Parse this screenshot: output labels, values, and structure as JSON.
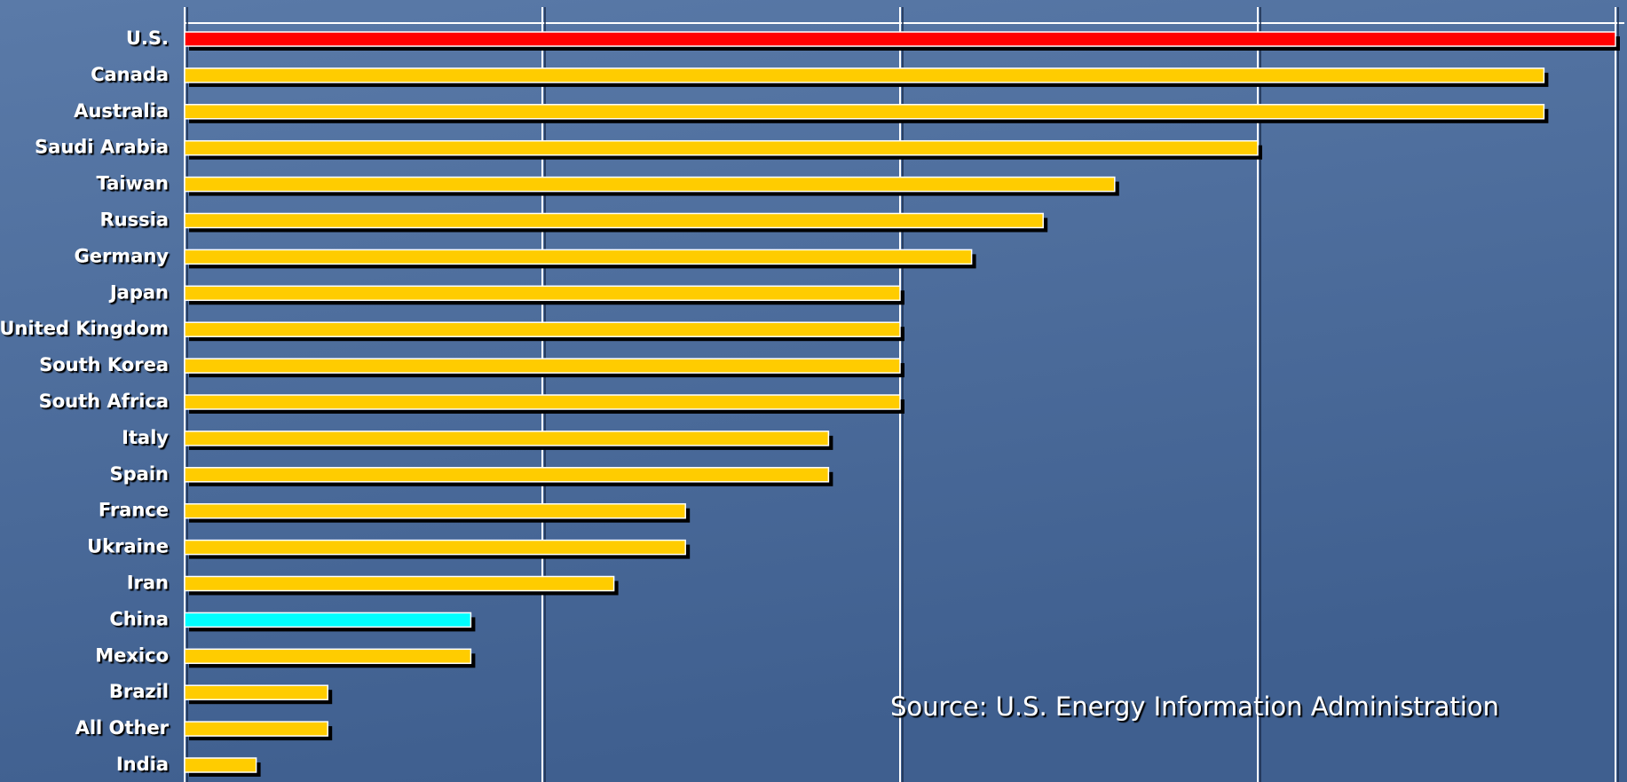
{
  "chart_data": {
    "type": "bar",
    "orientation": "horizontal",
    "categories": [
      "U.S.",
      "Canada",
      "Australia",
      "Saudi Arabia",
      "Taiwan",
      "Russia",
      "Germany",
      "Japan",
      "United Kingdom",
      "South Korea",
      "South Africa",
      "Italy",
      "Spain",
      "France",
      "Ukraine",
      "Iran",
      "China",
      "Mexico",
      "Brazil",
      "All Other",
      "India"
    ],
    "values": [
      20,
      19,
      19,
      15,
      13,
      12,
      11,
      10,
      10,
      10,
      10,
      9,
      9,
      7,
      7,
      6,
      4,
      4,
      2,
      2,
      1
    ],
    "colors": [
      "#ff0000",
      "#ffcc00",
      "#ffcc00",
      "#ffcc00",
      "#ffcc00",
      "#ffcc00",
      "#ffcc00",
      "#ffcc00",
      "#ffcc00",
      "#ffcc00",
      "#ffcc00",
      "#ffcc00",
      "#ffcc00",
      "#ffcc00",
      "#ffcc00",
      "#ffcc00",
      "#00ffff",
      "#ffcc00",
      "#ffcc00",
      "#ffcc00",
      "#ffcc00"
    ],
    "xlim": [
      0,
      20
    ],
    "xticks": [
      0,
      5,
      10,
      15,
      20
    ],
    "grid": true,
    "annotation": "Source: U.S. Energy Information Administration"
  }
}
